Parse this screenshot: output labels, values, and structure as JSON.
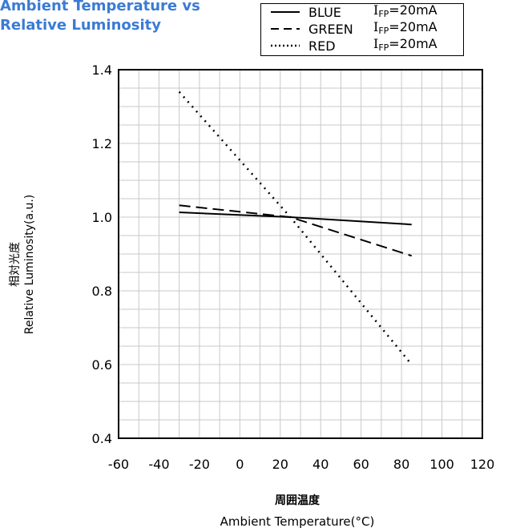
{
  "title_lines": [
    "Ambient Temperature vs",
    "Relative Luminosity"
  ],
  "chart_data": {
    "type": "line",
    "title": "Ambient Temperature vs Relative Luminosity",
    "xlabel_cjk": "周囲温度",
    "xlabel": "Ambient Temperature(°C)",
    "ylabel_cjk": "相対光度",
    "ylabel": "Relative Luminosity(a.u.)",
    "xlim": [
      -60,
      120
    ],
    "ylim": [
      0.4,
      1.4
    ],
    "x_ticks": [
      "-60",
      "-40",
      "-20",
      "0",
      "20",
      "40",
      "60",
      "80",
      "100",
      "120"
    ],
    "y_ticks": [
      "0.4",
      "0.6",
      "0.8",
      "1.0",
      "1.2",
      "1.4"
    ],
    "grid": true,
    "legend_position": "top-right",
    "series": [
      {
        "name": "BLUE",
        "condition": "I",
        "condition_sub": "FP",
        "condition_val": "=20mA",
        "style": "solid",
        "x": [
          -30,
          25,
          85
        ],
        "y": [
          1.013,
          1.0,
          0.98
        ]
      },
      {
        "name": "GREEN",
        "condition": "I",
        "condition_sub": "FP",
        "condition_val": "=20mA",
        "style": "dashed",
        "x": [
          -30,
          25,
          85
        ],
        "y": [
          1.032,
          1.0,
          0.895
        ]
      },
      {
        "name": "RED",
        "condition": "I",
        "condition_sub": "FP",
        "condition_val": "=20mA",
        "style": "dotted",
        "x": [
          -30,
          25,
          85
        ],
        "y": [
          1.34,
          1.0,
          0.6
        ]
      }
    ]
  }
}
